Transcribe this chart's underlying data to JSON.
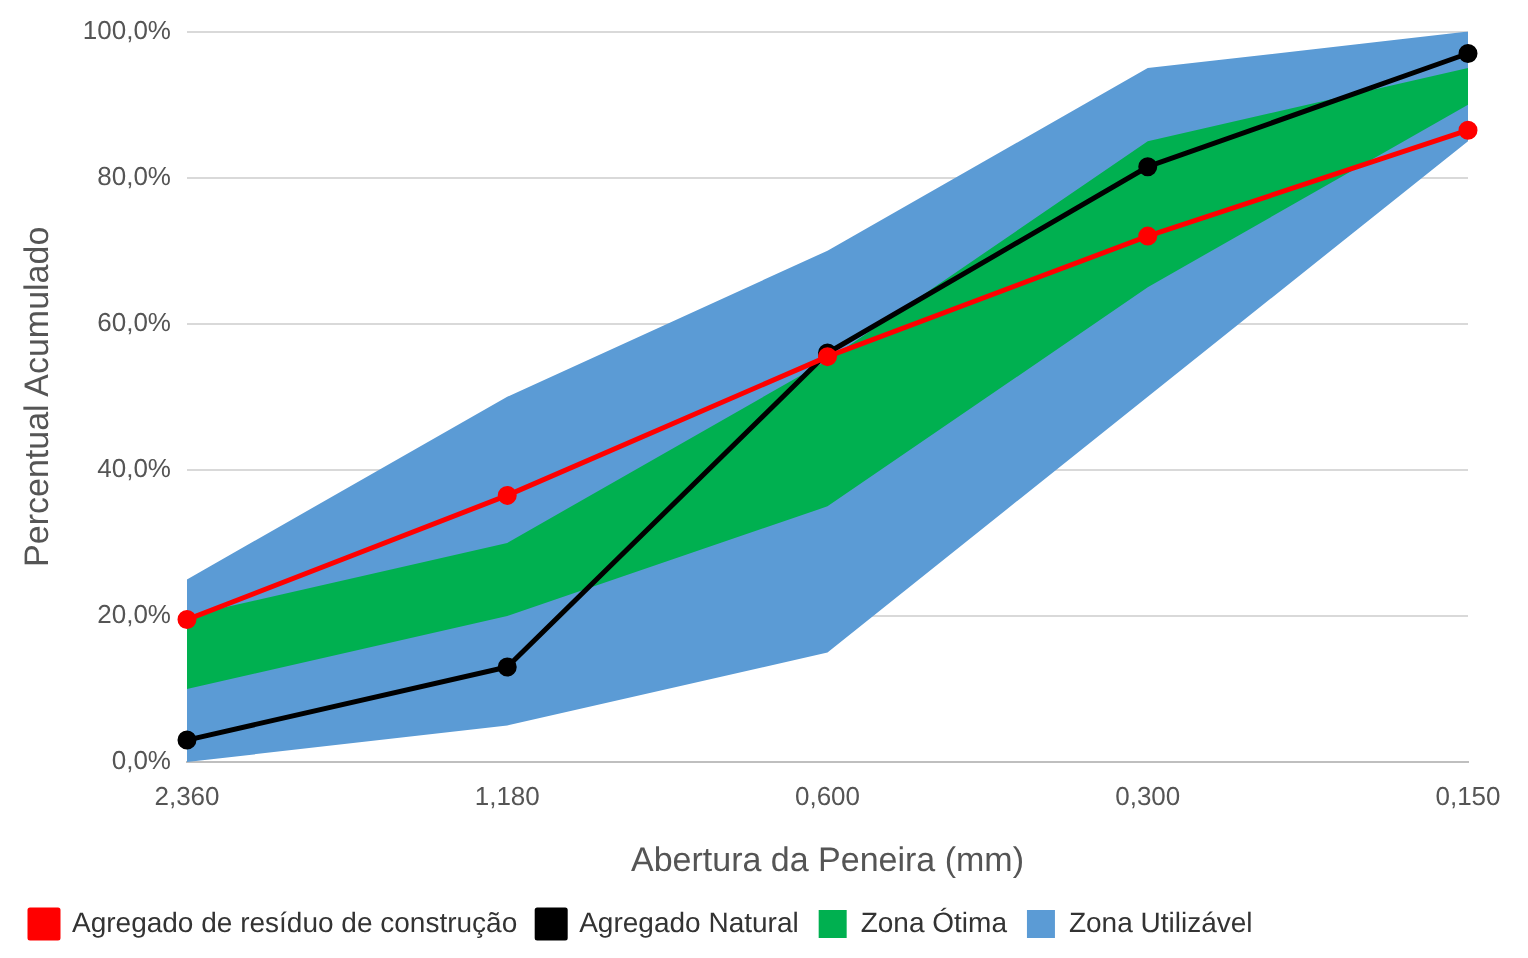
{
  "chart_data": {
    "type": "line",
    "xlabel": "Abertura da Peneira (mm)",
    "ylabel": "Percentual Acumulado",
    "categories": [
      "2,360",
      "1,180",
      "0,600",
      "0,300",
      "0,150"
    ],
    "series": [
      {
        "name": "Zona Utilizável",
        "type": "area",
        "color": "#5b9bd5",
        "values": [
          null,
          null,
          null,
          null,
          null
        ],
        "lower": [
          0,
          5,
          15,
          50,
          85
        ],
        "upper": [
          25,
          50,
          70,
          95,
          100
        ]
      },
      {
        "name": "Zona Ótima",
        "type": "area",
        "color": "#00b050",
        "values": [
          null,
          null,
          null,
          null,
          null
        ],
        "lower": [
          10,
          20,
          35,
          65,
          90
        ],
        "upper": [
          20,
          30,
          55,
          85,
          95
        ]
      },
      {
        "name": "Agregado Natural",
        "type": "line",
        "color": "#000000",
        "values": [
          3,
          13,
          56,
          81.5,
          97
        ]
      },
      {
        "name": "Agregado de resíduo de construção",
        "type": "line",
        "color": "#ff0000",
        "values": [
          19.5,
          36.5,
          55.5,
          72,
          86.5
        ]
      }
    ],
    "ylim": [
      0,
      100
    ],
    "yticks": [
      {
        "value": 0,
        "label": "0,0%"
      },
      {
        "value": 20,
        "label": "20,0%"
      },
      {
        "value": 40,
        "label": "40,0%"
      },
      {
        "value": 60,
        "label": "60,0%"
      },
      {
        "value": 80,
        "label": "80,0%"
      },
      {
        "value": 100,
        "label": "100,0%"
      }
    ],
    "grid": "y",
    "legend": "bottom",
    "marker": "circle",
    "line_style": "solid"
  }
}
